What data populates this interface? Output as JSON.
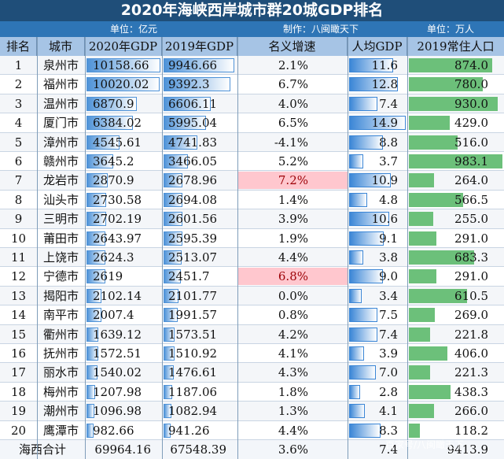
{
  "title": "2020年海峡西岸城市群20城GDP排名",
  "unit_gdp": "单位：亿元",
  "maker": "制作：八闽瞰天下",
  "unit_pop": "单位：万人",
  "headers": [
    "排名",
    "城市",
    "2020年GDP",
    "2019年GDP",
    "名义增速",
    "人均GDP",
    "2019常住人口"
  ],
  "rows": [
    {
      "rank": "1",
      "city": "泉州市",
      "gdp2020": "10158.66",
      "gdp2019": "9946.66",
      "growth": "2.1%",
      "per": "11.6",
      "pop": "874.0",
      "hl": false
    },
    {
      "rank": "2",
      "city": "福州市",
      "gdp2020": "10020.02",
      "gdp2019": "9392.3",
      "growth": "6.7%",
      "per": "12.8",
      "pop": "780.0",
      "hl": false
    },
    {
      "rank": "3",
      "city": "温州市",
      "gdp2020": "6870.9",
      "gdp2019": "6606.11",
      "growth": "4.0%",
      "per": "7.4",
      "pop": "930.0",
      "hl": false
    },
    {
      "rank": "4",
      "city": "厦门市",
      "gdp2020": "6384.02",
      "gdp2019": "5995.04",
      "growth": "6.5%",
      "per": "14.9",
      "pop": "429.0",
      "hl": false
    },
    {
      "rank": "5",
      "city": "漳州市",
      "gdp2020": "4545.61",
      "gdp2019": "4741.83",
      "growth": "-4.1%",
      "per": "8.8",
      "pop": "516.0",
      "hl": false
    },
    {
      "rank": "6",
      "city": "赣州市",
      "gdp2020": "3645.2",
      "gdp2019": "3466.05",
      "growth": "5.2%",
      "per": "3.7",
      "pop": "983.1",
      "hl": false
    },
    {
      "rank": "7",
      "city": "龙岩市",
      "gdp2020": "2870.9",
      "gdp2019": "2678.96",
      "growth": "7.2%",
      "per": "10.9",
      "pop": "264.0",
      "hl": true
    },
    {
      "rank": "8",
      "city": "汕头市",
      "gdp2020": "2730.58",
      "gdp2019": "2694.08",
      "growth": "1.4%",
      "per": "4.8",
      "pop": "566.5",
      "hl": false
    },
    {
      "rank": "9",
      "city": "三明市",
      "gdp2020": "2702.19",
      "gdp2019": "2601.56",
      "growth": "3.9%",
      "per": "10.6",
      "pop": "255.0",
      "hl": false
    },
    {
      "rank": "10",
      "city": "莆田市",
      "gdp2020": "2643.97",
      "gdp2019": "2595.39",
      "growth": "1.9%",
      "per": "9.1",
      "pop": "291.0",
      "hl": false
    },
    {
      "rank": "11",
      "city": "上饶市",
      "gdp2020": "2624.3",
      "gdp2019": "2513.07",
      "growth": "4.4%",
      "per": "3.8",
      "pop": "683.3",
      "hl": false
    },
    {
      "rank": "12",
      "city": "宁德市",
      "gdp2020": "2619",
      "gdp2019": "2451.7",
      "growth": "6.8%",
      "per": "9.0",
      "pop": "291.0",
      "hl": true
    },
    {
      "rank": "13",
      "city": "揭阳市",
      "gdp2020": "2102.14",
      "gdp2019": "2101.77",
      "growth": "0.0%",
      "per": "3.4",
      "pop": "610.5",
      "hl": false
    },
    {
      "rank": "14",
      "city": "南平市",
      "gdp2020": "2007.4",
      "gdp2019": "1991.57",
      "growth": "0.8%",
      "per": "7.5",
      "pop": "269.0",
      "hl": false
    },
    {
      "rank": "15",
      "city": "衢州市",
      "gdp2020": "1639.12",
      "gdp2019": "1573.51",
      "growth": "4.2%",
      "per": "7.4",
      "pop": "221.8",
      "hl": false
    },
    {
      "rank": "16",
      "city": "抚州市",
      "gdp2020": "1572.51",
      "gdp2019": "1510.92",
      "growth": "4.1%",
      "per": "3.9",
      "pop": "406.0",
      "hl": false
    },
    {
      "rank": "17",
      "city": "丽水市",
      "gdp2020": "1540.02",
      "gdp2019": "1476.61",
      "growth": "4.3%",
      "per": "7.0",
      "pop": "221.3",
      "hl": false
    },
    {
      "rank": "18",
      "city": "梅州市",
      "gdp2020": "1207.98",
      "gdp2019": "1187.06",
      "growth": "1.8%",
      "per": "2.8",
      "pop": "438.3",
      "hl": false
    },
    {
      "rank": "19",
      "city": "潮州市",
      "gdp2020": "1096.98",
      "gdp2019": "1082.94",
      "growth": "1.3%",
      "per": "4.1",
      "pop": "266.0",
      "hl": false
    },
    {
      "rank": "20",
      "city": "鹰潭市",
      "gdp2020": "982.66",
      "gdp2019": "941.26",
      "growth": "4.4%",
      "per": "8.3",
      "pop": "118.2",
      "hl": false
    }
  ],
  "total": {
    "label": "海西合计",
    "gdp2020": "69964.16",
    "gdp2019": "67548.39",
    "growth": "3.6%",
    "per": "7.4",
    "pop": "9413.9"
  },
  "watermark": "百家号/八闽瞰天下",
  "colors": {
    "title_bg": "#1f4e79",
    "sub_bg": "#2e75b6",
    "header_bg": "#a6c4e5",
    "gdp_bar": "#4f93d8",
    "per_bar": "#3b86d6",
    "pop_bar": "#6cc07a",
    "highlight": "#ffc7ce",
    "highlight_text": "#9c0006"
  }
}
